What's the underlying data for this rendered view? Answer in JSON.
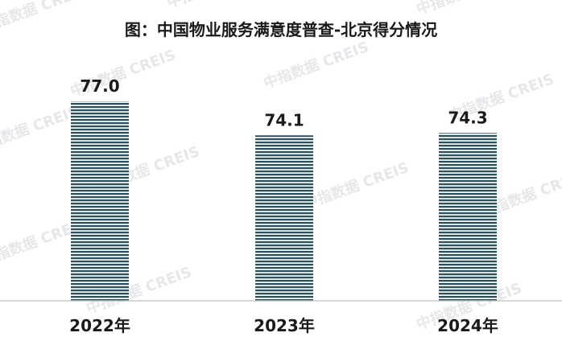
{
  "chart_data": {
    "type": "bar",
    "title": "图：中国物业服务满意度普查-北京得分情况",
    "categories": [
      "2022年",
      "2023年",
      "2024年"
    ],
    "values": [
      77.0,
      74.1,
      74.3
    ],
    "value_labels": [
      "77.0",
      "74.1",
      "74.3"
    ],
    "ylim": [
      60,
      80
    ],
    "grid": false,
    "legend": "none",
    "bar_color": "#2f4f58",
    "bar_stripe_color": "#ffffff",
    "axis_color": "#bfbfbf"
  },
  "watermark": {
    "text": "中指数据 CREIS"
  }
}
